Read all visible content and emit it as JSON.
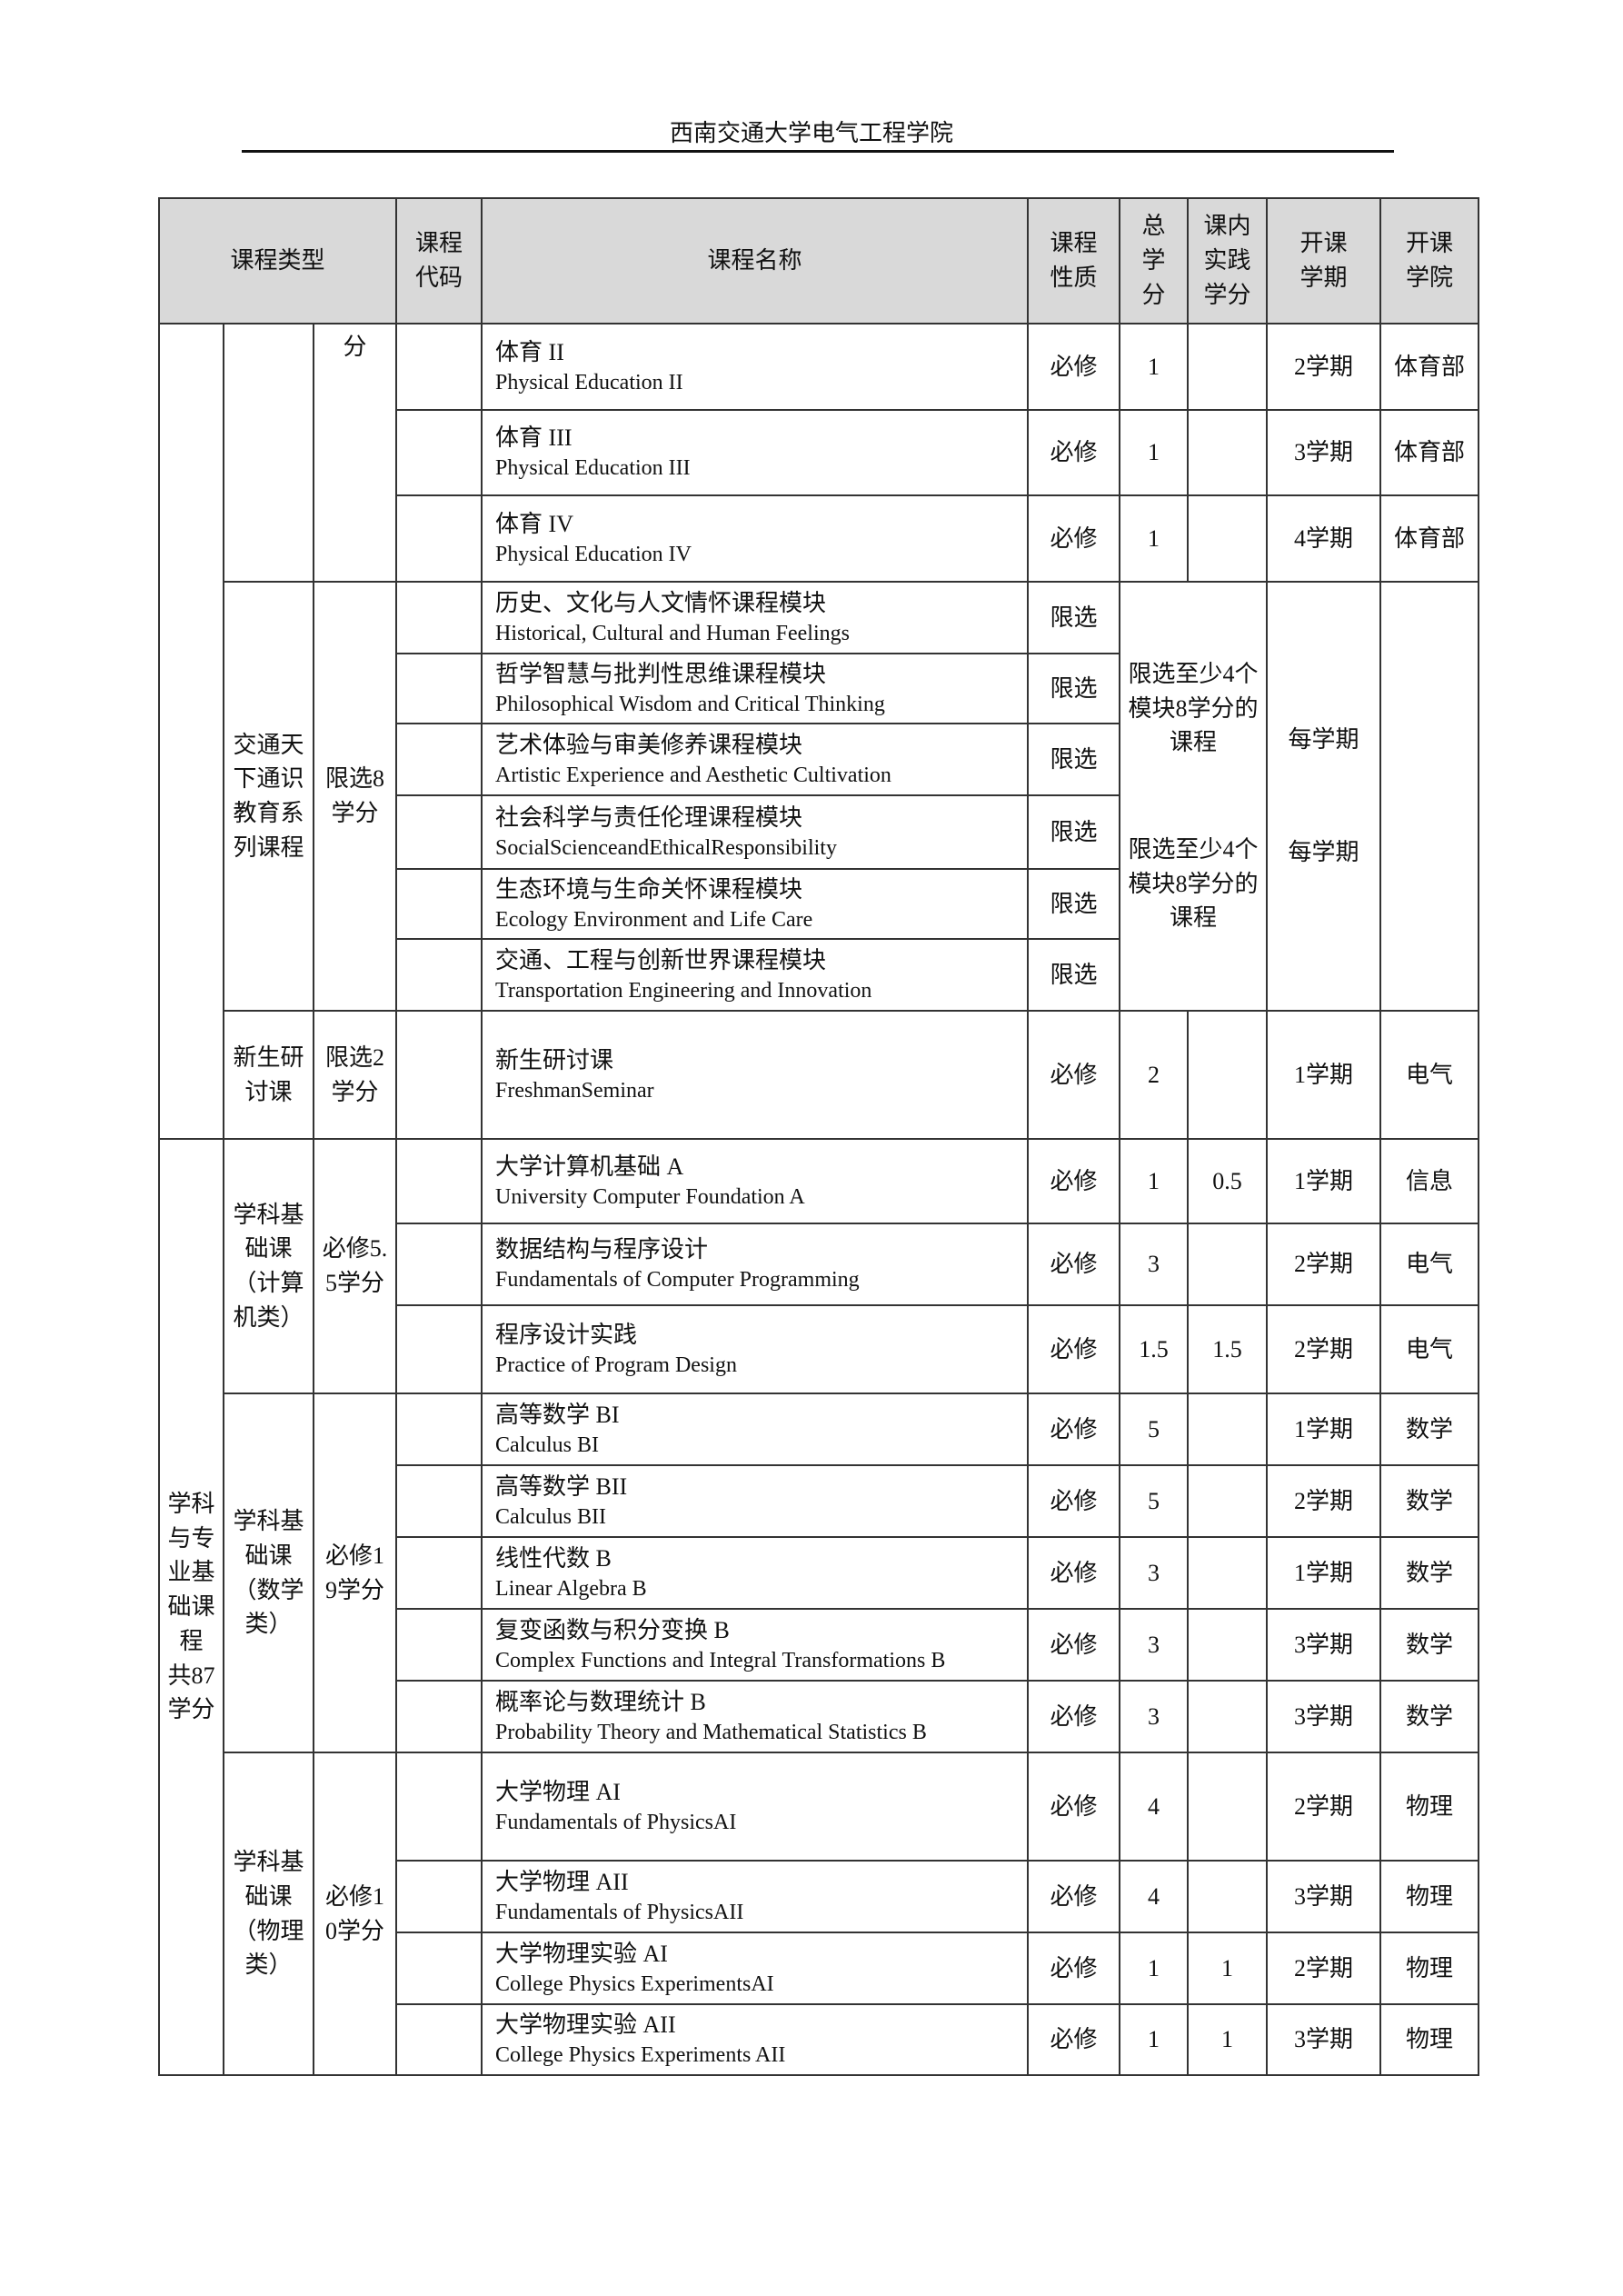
{
  "header": {
    "title": "西南交通大学电气工程学院"
  },
  "columns": [
    "课程类型",
    "课程代码",
    "课程名称",
    "课程性质",
    "总学分",
    "课内实践学分",
    "开课学期",
    "开课学院"
  ],
  "column_display": [
    "课程类型",
    "课程\n代码",
    "课程名称",
    "课程\n性质",
    "总\n学\n分",
    "课内\n实践\n学分",
    "开课\n学期",
    "开课\n学院"
  ],
  "groups": {
    "level1": [
      "",
      "学科与专业基础课程 共87学分"
    ],
    "level2": [
      "",
      "交通天下通识教育系列课程",
      "新生研讨课",
      "学科基础课（计算机类）",
      "学科基础课（数学类）",
      "学科基础课（物理类）"
    ],
    "level3": [
      "分",
      "限选8学分",
      "限选2学分",
      "必修5.5学分",
      "必修19学分",
      "必修10学分"
    ]
  },
  "module_block": {
    "credit_notes": [
      "限选至少4个模块8学分的课程",
      "限选至少4个模块8学分的课程"
    ],
    "semesters": [
      "每学期",
      "每学期"
    ]
  },
  "courses": [
    {
      "cn": "体育 II",
      "en": "Physical Education II",
      "nature": "必修",
      "credits": "1",
      "practice": "",
      "semester": "2学期",
      "college": "体育部"
    },
    {
      "cn": "体育 III",
      "en": "Physical Education III",
      "nature": "必修",
      "credits": "1",
      "practice": "",
      "semester": "3学期",
      "college": "体育部"
    },
    {
      "cn": "体育 IV",
      "en": "Physical Education IV",
      "nature": "必修",
      "credits": "1",
      "practice": "",
      "semester": "4学期",
      "college": "体育部"
    },
    {
      "cn": "历史、文化与人文情怀课程模块",
      "en": "Historical, Cultural and Human Feelings",
      "nature": "限选"
    },
    {
      "cn": "哲学智慧与批判性思维课程模块",
      "en": "Philosophical Wisdom and Critical Thinking",
      "nature": "限选"
    },
    {
      "cn": "艺术体验与审美修养课程模块",
      "en": "Artistic Experience and Aesthetic Cultivation",
      "nature": "限选"
    },
    {
      "cn": "社会科学与责任伦理课程模块",
      "en": "SocialScienceandEthicalResponsibility",
      "nature": "限选"
    },
    {
      "cn": "生态环境与生命关怀课程模块",
      "en": "Ecology Environment and Life Care",
      "nature": "限选"
    },
    {
      "cn": "交通、工程与创新世界课程模块",
      "en": "Transportation Engineering and Innovation",
      "nature": "限选"
    },
    {
      "cn": "新生研讨课",
      "en": "FreshmanSeminar",
      "nature": "必修",
      "credits": "2",
      "practice": "",
      "semester": "1学期",
      "college": "电气"
    },
    {
      "cn": "大学计算机基础 A",
      "en": "University Computer Foundation A",
      "nature": "必修",
      "credits": "1",
      "practice": "0.5",
      "semester": "1学期",
      "college": "信息"
    },
    {
      "cn": "数据结构与程序设计",
      "en": "Fundamentals of Computer Programming",
      "nature": "必修",
      "credits": "3",
      "practice": "",
      "semester": "2学期",
      "college": "电气"
    },
    {
      "cn": "程序设计实践",
      "en": "Practice of Program Design",
      "nature": "必修",
      "credits": "1.5",
      "practice": "1.5",
      "semester": "2学期",
      "college": "电气"
    },
    {
      "cn": "高等数学 BI",
      "en": "Calculus BI",
      "nature": "必修",
      "credits": "5",
      "practice": "",
      "semester": "1学期",
      "college": "数学"
    },
    {
      "cn": "高等数学 BII",
      "en": "Calculus BII",
      "nature": "必修",
      "credits": "5",
      "practice": "",
      "semester": "2学期",
      "college": "数学"
    },
    {
      "cn": "线性代数 B",
      "en": "Linear Algebra B",
      "nature": "必修",
      "credits": "3",
      "practice": "",
      "semester": "1学期",
      "college": "数学"
    },
    {
      "cn": "复变函数与积分变换 B",
      "en": "Complex Functions and Integral Transformations B",
      "nature": "必修",
      "credits": "3",
      "practice": "",
      "semester": "3学期",
      "college": "数学"
    },
    {
      "cn": "概率论与数理统计 B",
      "en": "Probability Theory and Mathematical Statistics B",
      "nature": "必修",
      "credits": "3",
      "practice": "",
      "semester": "3学期",
      "college": "数学"
    },
    {
      "cn": "大学物理 AI",
      "en": "Fundamentals of PhysicsAI",
      "nature": "必修",
      "credits": "4",
      "practice": "",
      "semester": "2学期",
      "college": "物理"
    },
    {
      "cn": "大学物理 AII",
      "en": "Fundamentals of PhysicsAII",
      "nature": "必修",
      "credits": "4",
      "practice": "",
      "semester": "3学期",
      "college": "物理"
    },
    {
      "cn": "大学物理实验 AI",
      "en": "College Physics ExperimentsAI",
      "nature": "必修",
      "credits": "1",
      "practice": "1",
      "semester": "2学期",
      "college": "物理"
    },
    {
      "cn": "大学物理实验 AII",
      "en": "College Physics Experiments AII",
      "nature": "必修",
      "credits": "1",
      "practice": "1",
      "semester": "3学期",
      "college": "物理"
    }
  ]
}
